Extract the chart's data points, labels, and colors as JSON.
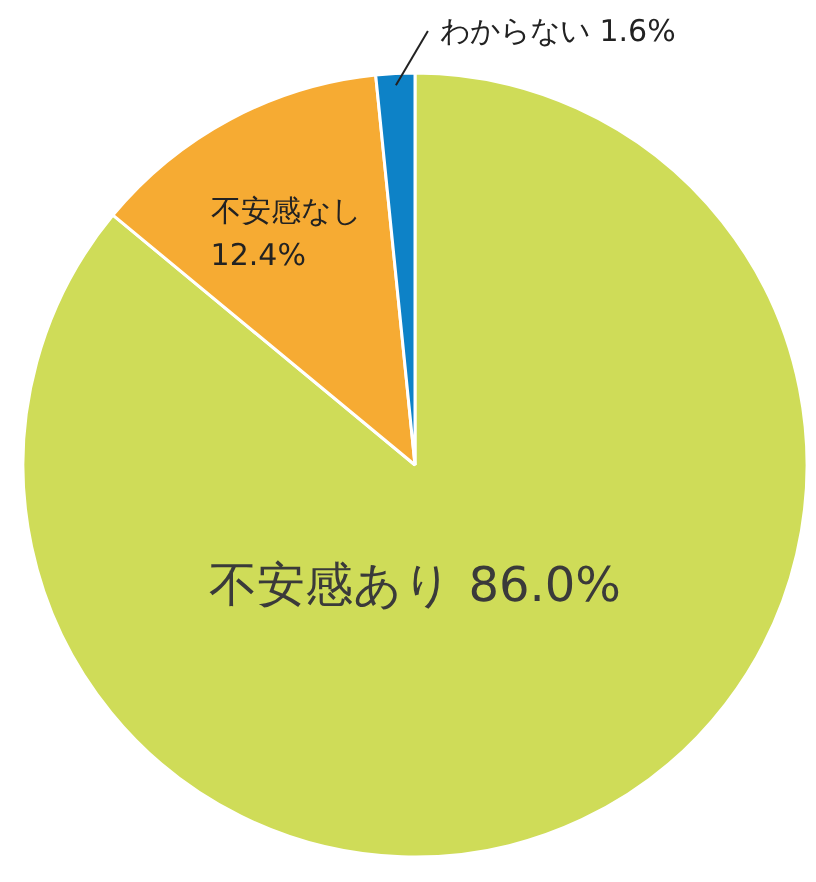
{
  "chart_data": {
    "type": "pie",
    "categories": [
      "不安感あり",
      "不安感なし",
      "わからない"
    ],
    "values": [
      86.0,
      12.4,
      1.6
    ],
    "colors": [
      "#cfdc58",
      "#f6ab33",
      "#0d82c7"
    ],
    "value_labels": [
      "86.0%",
      "12.4%",
      "1.6%"
    ]
  }
}
